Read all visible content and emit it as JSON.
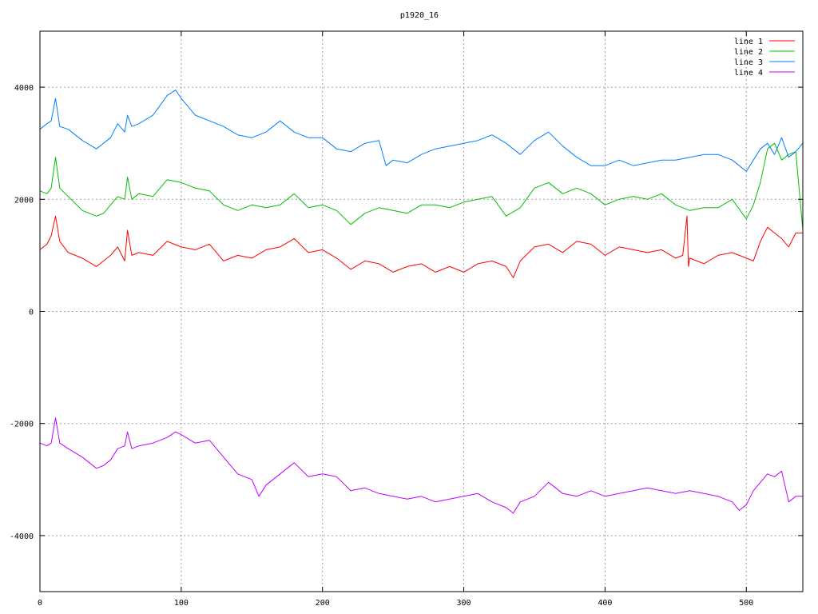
{
  "chart_data": {
    "type": "line",
    "title": "p1920_16",
    "xlabel": "",
    "ylabel": "",
    "xlim": [
      0,
      540
    ],
    "ylim": [
      -5000,
      5000
    ],
    "xticks": [
      0,
      100,
      200,
      300,
      400,
      500
    ],
    "yticks": [
      -4000,
      -2000,
      0,
      2000,
      4000
    ],
    "grid": true,
    "legend_position": "top-right",
    "series": [
      {
        "name": "line 1",
        "color": "#ff0000",
        "x": [
          0,
          5,
          8,
          11,
          14,
          20,
          30,
          40,
          45,
          50,
          55,
          60,
          62,
          65,
          70,
          80,
          90,
          100,
          110,
          120,
          130,
          140,
          150,
          160,
          170,
          180,
          190,
          200,
          210,
          220,
          230,
          240,
          250,
          260,
          270,
          280,
          290,
          300,
          310,
          320,
          330,
          335,
          340,
          350,
          360,
          370,
          380,
          390,
          400,
          410,
          420,
          430,
          440,
          450,
          455,
          458,
          459,
          460,
          465,
          470,
          480,
          490,
          500,
          505,
          510,
          515,
          520,
          525,
          530,
          535,
          540
        ],
        "y": [
          1100,
          1200,
          1350,
          1700,
          1250,
          1050,
          950,
          800,
          900,
          1000,
          1150,
          900,
          1450,
          1000,
          1050,
          1000,
          1250,
          1150,
          1100,
          1200,
          900,
          1000,
          950,
          1100,
          1150,
          1300,
          1050,
          1100,
          950,
          750,
          900,
          850,
          700,
          800,
          850,
          700,
          800,
          700,
          850,
          900,
          800,
          600,
          900,
          1150,
          1200,
          1050,
          1250,
          1200,
          1000,
          1150,
          1100,
          1050,
          1100,
          950,
          1000,
          1700,
          800,
          950,
          900,
          850,
          1000,
          1050,
          950,
          900,
          1250,
          1500,
          1400,
          1300,
          1150,
          1400,
          1400
        ]
      },
      {
        "name": "line 2",
        "color": "#00c000",
        "x": [
          0,
          5,
          8,
          11,
          14,
          20,
          30,
          40,
          45,
          50,
          55,
          60,
          62,
          65,
          70,
          80,
          90,
          100,
          110,
          120,
          130,
          140,
          150,
          160,
          170,
          180,
          190,
          200,
          210,
          220,
          230,
          240,
          250,
          260,
          270,
          280,
          290,
          300,
          310,
          320,
          330,
          340,
          350,
          360,
          370,
          380,
          390,
          400,
          410,
          420,
          430,
          440,
          450,
          460,
          470,
          480,
          490,
          500,
          505,
          510,
          515,
          520,
          525,
          530,
          535,
          540
        ],
        "y": [
          2150,
          2100,
          2200,
          2750,
          2200,
          2050,
          1800,
          1700,
          1750,
          1900,
          2050,
          2000,
          2400,
          2000,
          2100,
          2050,
          2350,
          2300,
          2200,
          2150,
          1900,
          1800,
          1900,
          1850,
          1900,
          2100,
          1850,
          1900,
          1800,
          1550,
          1750,
          1850,
          1800,
          1750,
          1900,
          1900,
          1850,
          1950,
          2000,
          2050,
          1700,
          1850,
          2200,
          2300,
          2100,
          2200,
          2100,
          1900,
          2000,
          2050,
          2000,
          2100,
          1900,
          1800,
          1850,
          1850,
          2000,
          1650,
          1900,
          2300,
          2900,
          3000,
          2700,
          2800,
          2850,
          1450
        ]
      },
      {
        "name": "line 3",
        "color": "#0080ff",
        "x": [
          0,
          5,
          8,
          11,
          14,
          20,
          30,
          40,
          45,
          50,
          55,
          60,
          62,
          65,
          70,
          80,
          90,
          96,
          100,
          110,
          120,
          130,
          140,
          150,
          160,
          170,
          180,
          190,
          200,
          210,
          220,
          230,
          240,
          245,
          250,
          260,
          270,
          280,
          290,
          300,
          310,
          320,
          330,
          340,
          350,
          360,
          370,
          380,
          390,
          400,
          410,
          420,
          430,
          440,
          450,
          460,
          470,
          480,
          490,
          500,
          505,
          510,
          515,
          520,
          525,
          530,
          535,
          540
        ],
        "y": [
          3250,
          3350,
          3400,
          3800,
          3300,
          3250,
          3050,
          2900,
          3000,
          3100,
          3350,
          3200,
          3500,
          3300,
          3350,
          3500,
          3850,
          3950,
          3800,
          3500,
          3400,
          3300,
          3150,
          3100,
          3200,
          3400,
          3200,
          3100,
          3100,
          2900,
          2850,
          3000,
          3050,
          2600,
          2700,
          2650,
          2800,
          2900,
          2950,
          3000,
          3050,
          3150,
          3000,
          2800,
          3050,
          3200,
          2950,
          2750,
          2600,
          2600,
          2700,
          2600,
          2650,
          2700,
          2700,
          2750,
          2800,
          2800,
          2700,
          2500,
          2700,
          2900,
          3000,
          2800,
          3100,
          2750,
          2850,
          3000
        ]
      },
      {
        "name": "line 4",
        "color": "#c000ff",
        "x": [
          0,
          5,
          8,
          11,
          14,
          20,
          30,
          40,
          45,
          50,
          55,
          60,
          62,
          65,
          70,
          80,
          90,
          96,
          100,
          110,
          120,
          130,
          140,
          150,
          155,
          160,
          170,
          180,
          190,
          200,
          210,
          220,
          230,
          240,
          250,
          260,
          270,
          280,
          290,
          300,
          310,
          320,
          330,
          335,
          340,
          350,
          360,
          370,
          380,
          390,
          400,
          410,
          420,
          430,
          440,
          450,
          460,
          470,
          480,
          490,
          495,
          500,
          505,
          510,
          515,
          520,
          525,
          530,
          535,
          540
        ],
        "y": [
          -2350,
          -2400,
          -2350,
          -1900,
          -2350,
          -2450,
          -2600,
          -2800,
          -2750,
          -2650,
          -2450,
          -2400,
          -2150,
          -2450,
          -2400,
          -2350,
          -2250,
          -2150,
          -2200,
          -2350,
          -2300,
          -2600,
          -2900,
          -3000,
          -3300,
          -3100,
          -2900,
          -2700,
          -2950,
          -2900,
          -2950,
          -3200,
          -3150,
          -3250,
          -3300,
          -3350,
          -3300,
          -3400,
          -3350,
          -3300,
          -3250,
          -3400,
          -3500,
          -3600,
          -3400,
          -3300,
          -3050,
          -3250,
          -3300,
          -3200,
          -3300,
          -3250,
          -3200,
          -3150,
          -3200,
          -3250,
          -3200,
          -3250,
          -3300,
          -3400,
          -3550,
          -3450,
          -3200,
          -3050,
          -2900,
          -2950,
          -2850,
          -3400,
          -3300,
          -3300
        ]
      }
    ]
  }
}
